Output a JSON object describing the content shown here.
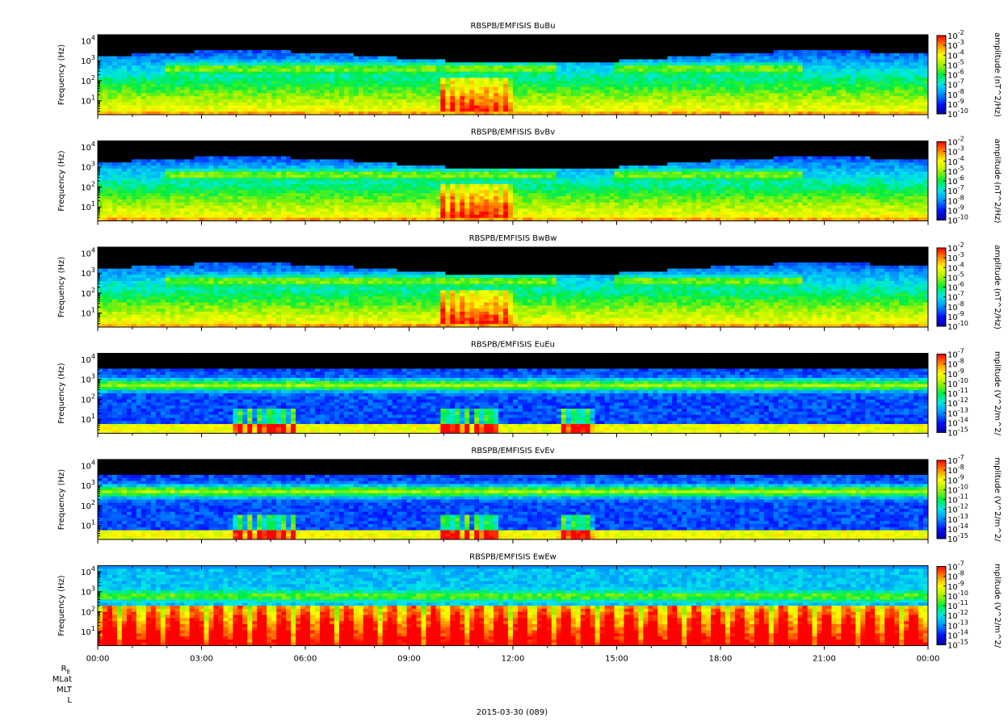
{
  "figure": {
    "date_label": "2015-03-30 (089)",
    "ephemeris_labels": [
      "R",
      "E",
      "MLat",
      "MLT",
      "L"
    ]
  },
  "chart_data": [
    {
      "type": "heatmap",
      "title": "RBSPB/EMFISIS  BuBu",
      "xlabel": "",
      "ylabel": "Frequency (Hz)",
      "x_ticks": [
        "00:00",
        "03:00",
        "06:00",
        "09:00",
        "12:00",
        "15:00",
        "18:00",
        "21:00",
        "00:00"
      ],
      "x_range_hours": [
        0,
        24
      ],
      "y_scale": "log",
      "y_range_hz": [
        2,
        20000
      ],
      "y_ticks": [
        "10^1",
        "10^2",
        "10^3",
        "10^4"
      ],
      "colorbar": {
        "label": "amplitude (nT^2/Hz)",
        "ticks": [
          "10^-2",
          "10^-3",
          "10^-4",
          "10^-5",
          "10^-6",
          "10^-7",
          "10^-8",
          "10^-9",
          "10^-10"
        ],
        "range_exp": [
          -10,
          -2
        ],
        "colormap": "rainbow"
      }
    },
    {
      "type": "heatmap",
      "title": "RBSPB/EMFISIS  BvBv",
      "xlabel": "",
      "ylabel": "Frequency (Hz)",
      "x_ticks": [
        "00:00",
        "03:00",
        "06:00",
        "09:00",
        "12:00",
        "15:00",
        "18:00",
        "21:00",
        "00:00"
      ],
      "x_range_hours": [
        0,
        24
      ],
      "y_scale": "log",
      "y_range_hz": [
        2,
        20000
      ],
      "y_ticks": [
        "10^1",
        "10^2",
        "10^3",
        "10^4"
      ],
      "colorbar": {
        "label": "amplitude (nT^2/Hz)",
        "ticks": [
          "10^-2",
          "10^-3",
          "10^-4",
          "10^-5",
          "10^-6",
          "10^-7",
          "10^-8",
          "10^-9",
          "10^-10"
        ],
        "range_exp": [
          -10,
          -2
        ],
        "colormap": "rainbow"
      }
    },
    {
      "type": "heatmap",
      "title": "RBSPB/EMFISIS  BwBw",
      "xlabel": "",
      "ylabel": "Frequency (Hz)",
      "x_ticks": [
        "00:00",
        "03:00",
        "06:00",
        "09:00",
        "12:00",
        "15:00",
        "18:00",
        "21:00",
        "00:00"
      ],
      "x_range_hours": [
        0,
        24
      ],
      "y_scale": "log",
      "y_range_hz": [
        2,
        20000
      ],
      "y_ticks": [
        "10^1",
        "10^2",
        "10^3",
        "10^4"
      ],
      "colorbar": {
        "label": "amplitude (nT^2/Hz)",
        "ticks": [
          "10^-2",
          "10^-3",
          "10^-4",
          "10^-5",
          "10^-6",
          "10^-7",
          "10^-8",
          "10^-9",
          "10^-10"
        ],
        "range_exp": [
          -10,
          -2
        ],
        "colormap": "rainbow"
      }
    },
    {
      "type": "heatmap",
      "title": "RBSPB/EMFISIS  EuEu",
      "xlabel": "",
      "ylabel": "Frequency (Hz)",
      "x_ticks": [
        "00:00",
        "03:00",
        "06:00",
        "09:00",
        "12:00",
        "15:00",
        "18:00",
        "21:00",
        "00:00"
      ],
      "x_range_hours": [
        0,
        24
      ],
      "y_scale": "log",
      "y_range_hz": [
        2,
        20000
      ],
      "y_ticks": [
        "10^1",
        "10^2",
        "10^3",
        "10^4"
      ],
      "colorbar": {
        "label": "mplitude (V^2/m^2/",
        "ticks": [
          "10^-7",
          "10^-8",
          "10^-9",
          "10^-10",
          "10^-11",
          "10^-12",
          "10^-13",
          "10^-14",
          "10^-15"
        ],
        "range_exp": [
          -15,
          -7
        ],
        "colormap": "rainbow"
      }
    },
    {
      "type": "heatmap",
      "title": "RBSPB/EMFISIS  EvEv",
      "xlabel": "",
      "ylabel": "Frequency (Hz)",
      "x_ticks": [
        "00:00",
        "03:00",
        "06:00",
        "09:00",
        "12:00",
        "15:00",
        "18:00",
        "21:00",
        "00:00"
      ],
      "x_range_hours": [
        0,
        24
      ],
      "y_scale": "log",
      "y_range_hz": [
        2,
        20000
      ],
      "y_ticks": [
        "10^1",
        "10^2",
        "10^3",
        "10^4"
      ],
      "colorbar": {
        "label": "mplitude (V^2/m^2/",
        "ticks": [
          "10^-7",
          "10^-8",
          "10^-9",
          "10^-10",
          "10^-11",
          "10^-12",
          "10^-13",
          "10^-14",
          "10^-15"
        ],
        "range_exp": [
          -15,
          -7
        ],
        "colormap": "rainbow"
      }
    },
    {
      "type": "heatmap",
      "title": "RBSPB/EMFISIS  EwEw",
      "xlabel": "",
      "ylabel": "Frequency (Hz)",
      "x_ticks": [
        "00:00",
        "03:00",
        "06:00",
        "09:00",
        "12:00",
        "15:00",
        "18:00",
        "21:00",
        "00:00"
      ],
      "x_range_hours": [
        0,
        24
      ],
      "y_scale": "log",
      "y_range_hz": [
        2,
        20000
      ],
      "y_ticks": [
        "10^1",
        "10^2",
        "10^3",
        "10^4"
      ],
      "colorbar": {
        "label": "mplitude (V^2/m^2/",
        "ticks": [
          "10^-7",
          "10^-8",
          "10^-9",
          "10^-10",
          "10^-11",
          "10^-12",
          "10^-13",
          "10^-14",
          "10^-15"
        ],
        "range_exp": [
          -15,
          -7
        ],
        "colormap": "rainbow"
      }
    }
  ]
}
